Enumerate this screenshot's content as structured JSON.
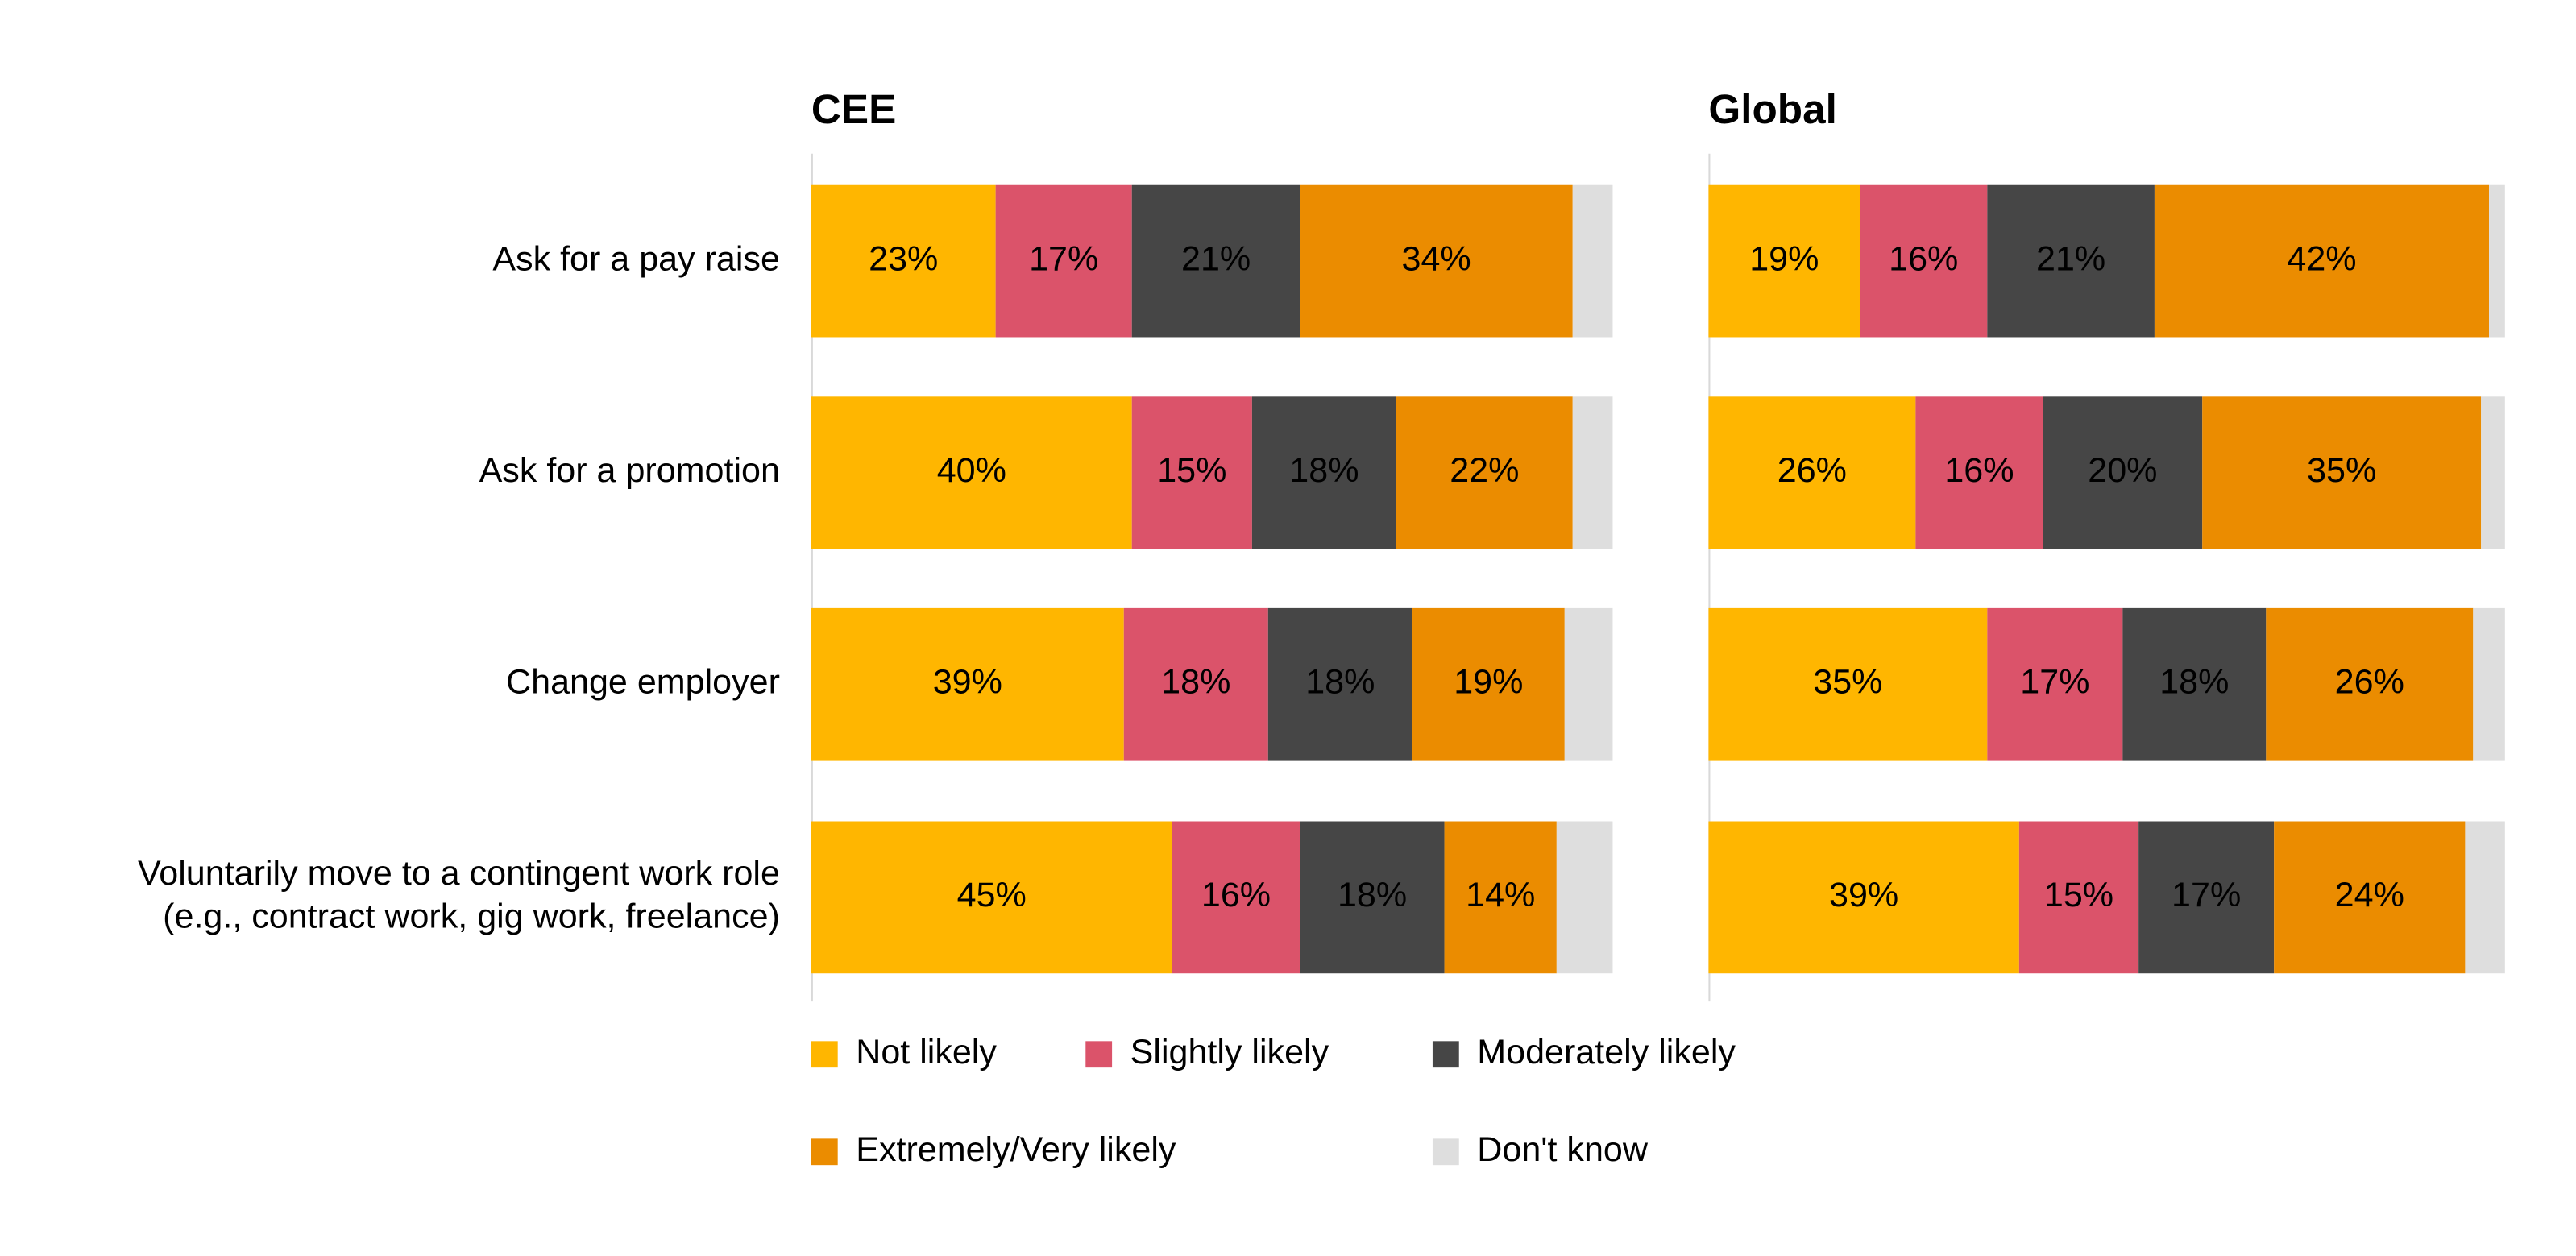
{
  "chart_data": [
    {
      "type": "stacked-bar",
      "orientation": "horizontal",
      "title": "CEE",
      "categories": [
        "Ask for a pay raise",
        "Ask for a promotion ",
        "Change employer",
        "Voluntarily move to a contingent work role\n(e.g., contract work, gig work, freelance)"
      ],
      "xlim": [
        0,
        100
      ],
      "series": [
        {
          "name": "Not likely",
          "color": "#FFB600",
          "values": [
            23,
            40,
            39,
            45
          ],
          "value_labels": [
            "23%",
            "40%",
            "39%",
            "45%"
          ]
        },
        {
          "name": "Slightly likely",
          "color": "#DB536A",
          "values": [
            17,
            15,
            18,
            16
          ],
          "value_labels": [
            "17%",
            "15%",
            "18%",
            "16%"
          ]
        },
        {
          "name": "Moderately likely",
          "color": "#464646",
          "values": [
            21,
            18,
            18,
            18
          ],
          "value_labels": [
            "21%",
            "18%",
            "18%",
            "18%"
          ]
        },
        {
          "name": "Extremely/Very likely",
          "color": "#EB8C00",
          "values": [
            34,
            22,
            19,
            14
          ],
          "value_labels": [
            "34%",
            "22%",
            "19%",
            "14%"
          ]
        },
        {
          "name": "Don't know",
          "color": "#DEDEDE",
          "values": [
            5,
            5,
            6,
            7
          ]
        }
      ]
    },
    {
      "type": "stacked-bar",
      "orientation": "horizontal",
      "title": "Global",
      "xlim": [
        0,
        100
      ],
      "series": [
        {
          "color": "#FFB600",
          "values": [
            19,
            26,
            35,
            39
          ],
          "value_labels": [
            "19%",
            "26%",
            "35%",
            "39%"
          ]
        },
        {
          "color": "#DB536A",
          "values": [
            16,
            16,
            17,
            15
          ],
          "value_labels": [
            "16%",
            "16%",
            "17%",
            "15%"
          ]
        },
        {
          "color": "#464646",
          "values": [
            21,
            20,
            18,
            17
          ],
          "value_labels": [
            "21%",
            "20%",
            "18%",
            "17%"
          ]
        },
        {
          "color": "#EB8C00",
          "values": [
            42,
            35,
            26,
            24
          ],
          "value_labels": [
            "42%",
            "35%",
            "26%",
            "24%"
          ]
        },
        {
          "color": "#DEDEDE",
          "values": [
            2,
            3,
            4,
            5
          ]
        }
      ]
    }
  ]
}
